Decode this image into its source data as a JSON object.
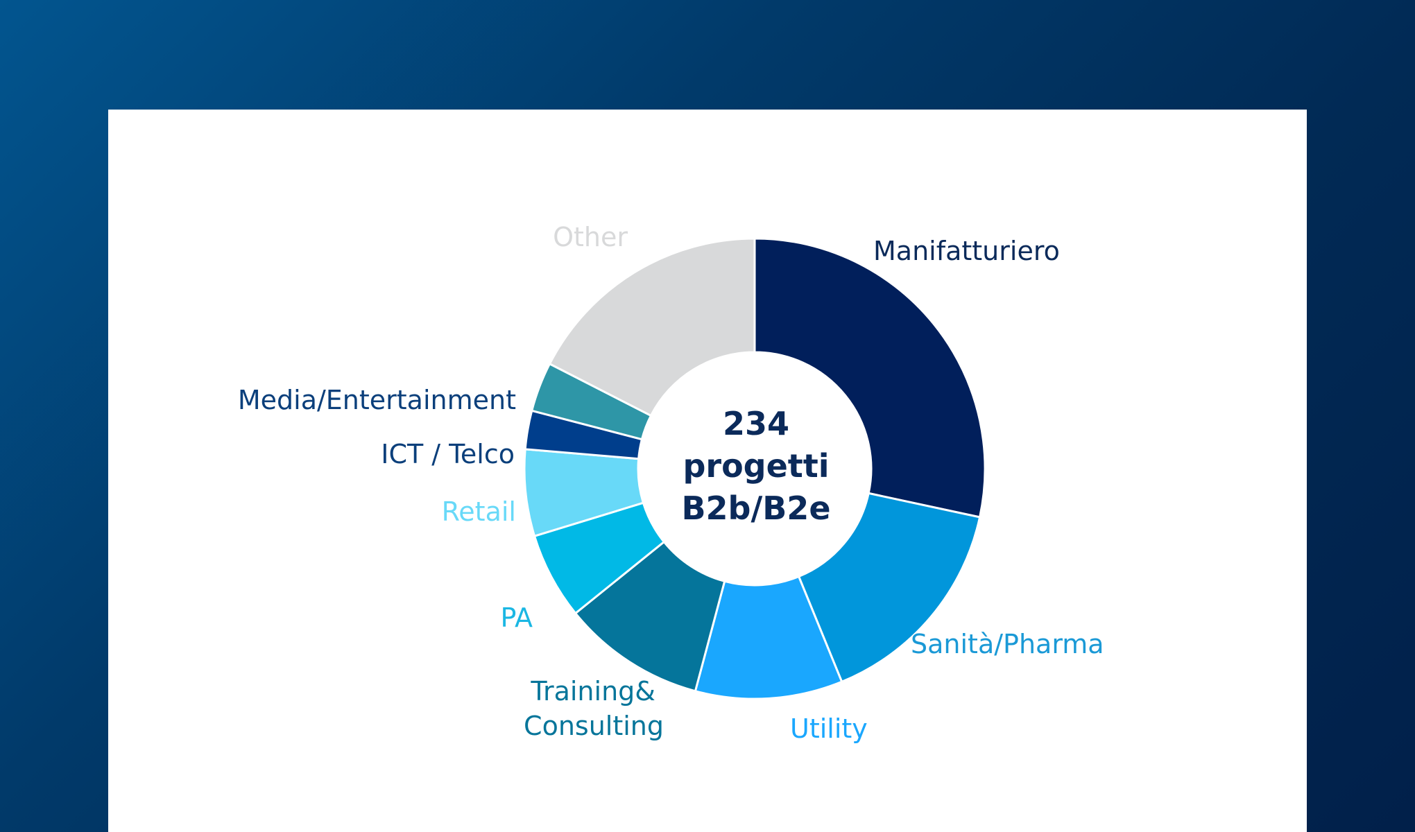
{
  "chart_data": {
    "type": "pie",
    "center_text": [
      "234",
      "progetti",
      "B2b/B2e"
    ],
    "categories": [
      "Manifatturiero",
      "Sanità/Pharma",
      "Utility",
      "Training& Consulting",
      "PA",
      "Retail",
      "ICT / Telco",
      "Media/Entertainment",
      "Other"
    ],
    "values": [
      29.4,
      16.0,
      10.7,
      10.4,
      6.3,
      6.3,
      2.8,
      3.6,
      18.1
    ],
    "unit": "%",
    "colors": [
      "#011f5b",
      "#0196db",
      "#1aa7fe",
      "#05759b",
      "#01b9e6",
      "#68d9f8",
      "#003e8c",
      "#2e96a7",
      "#d8d9da"
    ],
    "label_colors": [
      "#0b2a5a",
      "#1a99d6",
      "#1aa7fe",
      "#06759a",
      "#1bb7e3",
      "#68d9f8",
      "#0b3f7b",
      "#0b3f7b",
      "#d8d9da"
    ]
  }
}
